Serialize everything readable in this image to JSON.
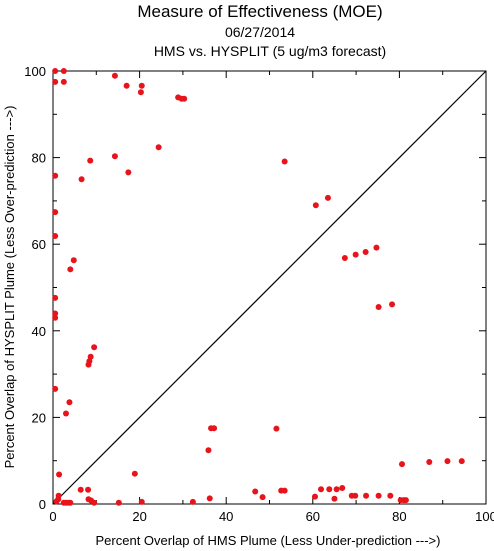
{
  "chart_data": {
    "type": "scatter",
    "title": "Measure of Effectiveness (MOE)",
    "subtitle_date": "06/27/2014",
    "subtitle_comparison": "HMS vs. HYSPLIT  (5 ug/m3 forecast)",
    "xlabel": "Percent Overlap of HMS Plume (Less Under-prediction --->)",
    "ylabel": "Percent Overlap of HYSPLIT Plume (Less Over-prediction --->)",
    "xlim": [
      0,
      100
    ],
    "ylim": [
      0,
      100
    ],
    "x_ticks": [
      0,
      20,
      40,
      60,
      80,
      100
    ],
    "y_ticks": [
      0,
      20,
      40,
      60,
      80,
      100
    ],
    "x_tick_labels": [
      "0",
      "20",
      "40",
      "60",
      "80",
      "100"
    ],
    "y_tick_labels": [
      "0",
      "20",
      "40",
      "60",
      "80",
      "100"
    ],
    "grid": false,
    "diagonal_reference_line": true,
    "point_color": "#e8141c",
    "line_color": "#000000",
    "series": [
      {
        "points": [
          [
            0.5,
            100
          ],
          [
            2.5,
            100
          ],
          [
            0.5,
            97.5
          ],
          [
            2.5,
            97.5
          ],
          [
            14.3,
            98.9
          ],
          [
            17,
            96.6
          ],
          [
            20.5,
            96.6
          ],
          [
            20.3,
            95.1
          ],
          [
            28.9,
            93.9
          ],
          [
            29.7,
            93.6
          ],
          [
            30.3,
            93.6
          ],
          [
            24.4,
            82.4
          ],
          [
            14.3,
            80.3
          ],
          [
            8.6,
            79.3
          ],
          [
            6.6,
            75.0
          ],
          [
            17.4,
            76.6
          ],
          [
            0.5,
            75.8
          ],
          [
            0.5,
            67.4
          ],
          [
            0.5,
            61.9
          ],
          [
            4.8,
            56.3
          ],
          [
            4.0,
            54.2
          ],
          [
            0.5,
            47.6
          ],
          [
            0.5,
            44.0
          ],
          [
            0.5,
            43.0
          ],
          [
            9.5,
            36.2
          ],
          [
            8.7,
            34.0
          ],
          [
            8.4,
            33.0
          ],
          [
            8.2,
            32.2
          ],
          [
            0.5,
            26.6
          ],
          [
            3.8,
            23.5
          ],
          [
            3.0,
            20.9
          ],
          [
            1.4,
            6.8
          ],
          [
            0.8,
            0.6
          ],
          [
            1.2,
            1.1
          ],
          [
            1.3,
            1.9
          ],
          [
            2.5,
            0.3
          ],
          [
            3.0,
            0.3
          ],
          [
            3.5,
            0.3
          ],
          [
            4.0,
            0.3
          ],
          [
            6.4,
            3.3
          ],
          [
            8.1,
            3.3
          ],
          [
            8.8,
            0.8
          ],
          [
            8.2,
            1.1
          ],
          [
            9.5,
            0.3
          ],
          [
            15.2,
            0.3
          ],
          [
            18.9,
            7.0
          ],
          [
            20.5,
            0.5
          ],
          [
            32.3,
            0.5
          ],
          [
            35.9,
            12.4
          ],
          [
            36.2,
            1.3
          ],
          [
            36.5,
            17.5
          ],
          [
            37.2,
            17.5
          ],
          [
            46.7,
            2.9
          ],
          [
            48.4,
            1.6
          ],
          [
            51.6,
            17.4
          ],
          [
            52.7,
            3.1
          ],
          [
            53.5,
            3.1
          ],
          [
            53.5,
            79.1
          ],
          [
            60.5,
            1.7
          ],
          [
            60.7,
            69.0
          ],
          [
            61.9,
            3.4
          ],
          [
            63.5,
            70.7
          ],
          [
            63.8,
            3.4
          ],
          [
            65.0,
            1.2
          ],
          [
            65.5,
            3.4
          ],
          [
            66.8,
            3.7
          ],
          [
            67.4,
            56.8
          ],
          [
            69.0,
            1.9
          ],
          [
            69.8,
            1.9
          ],
          [
            69.9,
            57.6
          ],
          [
            72.2,
            58.2
          ],
          [
            72.3,
            1.9
          ],
          [
            74.7,
            59.2
          ],
          [
            75.2,
            45.5
          ],
          [
            75.2,
            1.9
          ],
          [
            77.9,
            1.9
          ],
          [
            78.3,
            46.1
          ],
          [
            80.3,
            0.9
          ],
          [
            81.0,
            0.9
          ],
          [
            81.5,
            0.9
          ],
          [
            80.6,
            9.2
          ],
          [
            86.9,
            9.7
          ],
          [
            91.1,
            9.9
          ],
          [
            94.4,
            9.9
          ]
        ]
      }
    ]
  }
}
